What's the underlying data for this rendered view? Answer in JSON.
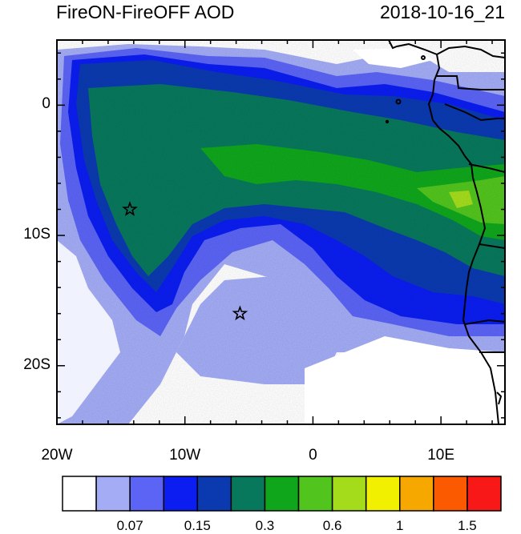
{
  "title": "FireON-FireOFF AOD",
  "timestamp": "2018-10-16_21",
  "axes": {
    "lat_ticks": [
      {
        "value": 0,
        "label": "0"
      },
      {
        "value": -10,
        "label": "10S"
      },
      {
        "value": -20,
        "label": "20S"
      }
    ],
    "lon_ticks": [
      {
        "value": -20,
        "label": "20W"
      },
      {
        "value": -10,
        "label": "10W"
      },
      {
        "value": 0,
        "label": "0"
      },
      {
        "value": 10,
        "label": "10E"
      }
    ],
    "lon_range": [
      -20,
      15
    ],
    "lat_range": [
      -24.5,
      5
    ]
  },
  "markers": [
    {
      "name": "star",
      "lon": -14.3,
      "lat": -8.0
    },
    {
      "name": "star",
      "lon": -5.7,
      "lat": -16.0
    }
  ],
  "colorbar": {
    "colors": [
      "#ffffff",
      "#a3acf5",
      "#5b64f5",
      "#0b1df0",
      "#0b3ab0",
      "#08785c",
      "#10a61c",
      "#52c41e",
      "#a4dc1c",
      "#f0f000",
      "#f6a800",
      "#fb5a00",
      "#f81818"
    ],
    "labels": [
      "0.07",
      "0.15",
      "0.3",
      "0.6",
      "1",
      "1.5"
    ]
  }
}
